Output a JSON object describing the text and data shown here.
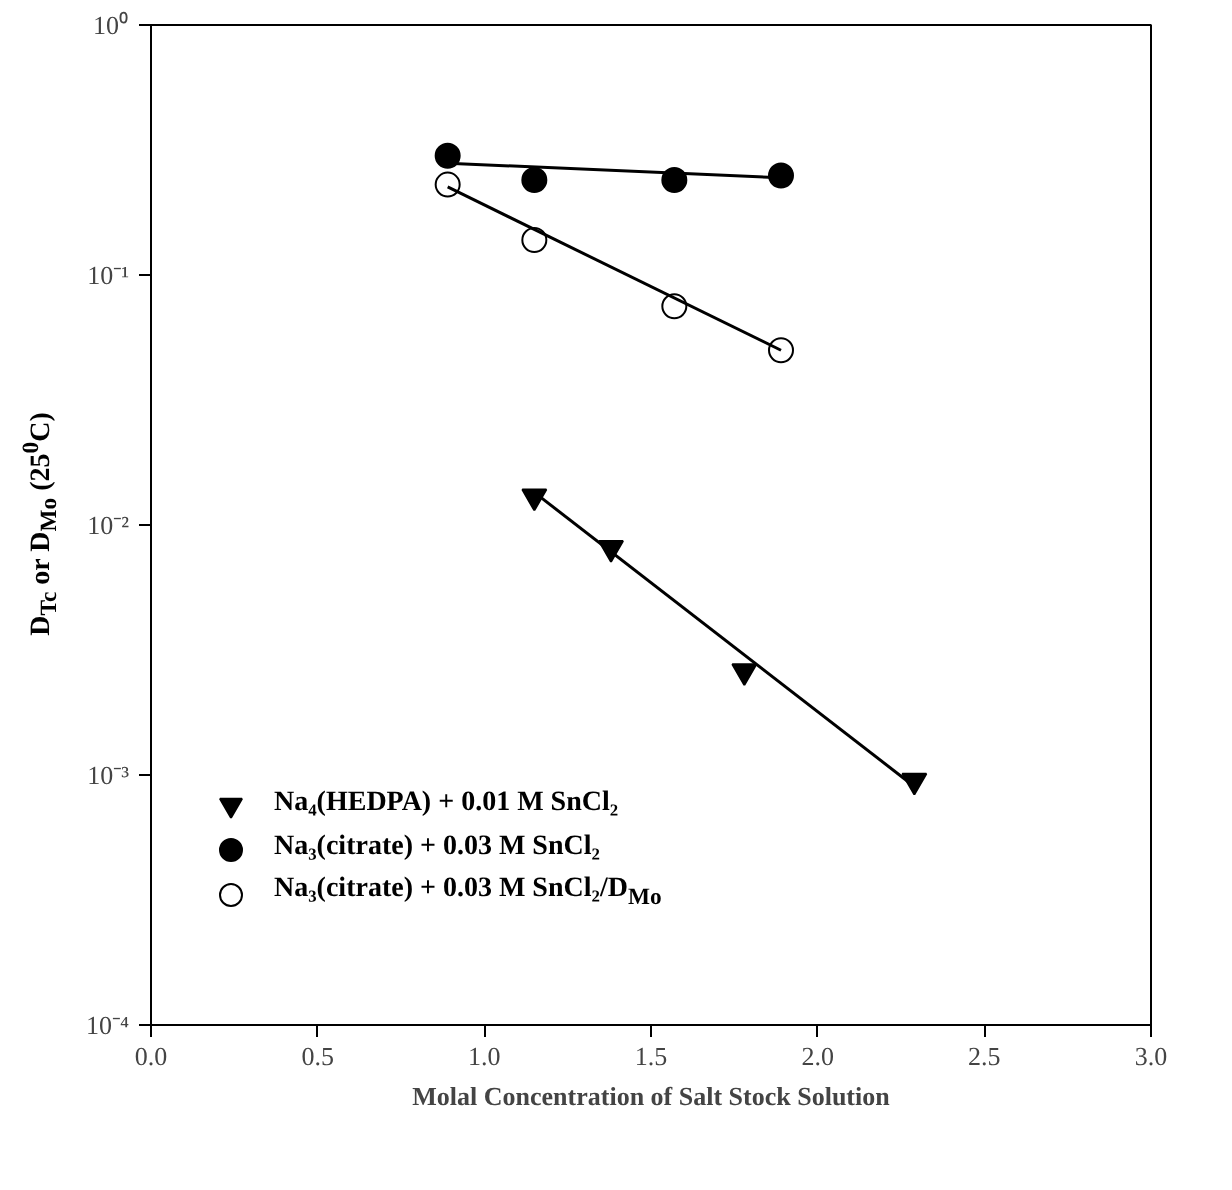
{
  "chart_data": {
    "type": "scatter",
    "xlabel": "Molal Concentration of Salt Stock Solution",
    "ylabel": "D$_{Tc}$ or D$_{Mo}$ (25$^{0}$C)",
    "log": "y",
    "grid": false,
    "legend": "bottom left",
    "xlim": [
      0,
      3
    ],
    "xticks": [
      {
        "value": 0,
        "label": "0.0"
      },
      {
        "value": 0.5,
        "label": "0.5"
      },
      {
        "value": 1,
        "label": "1.0"
      },
      {
        "value": 1.5,
        "label": "1.5"
      },
      {
        "value": 2,
        "label": "2.0"
      },
      {
        "value": 2.5,
        "label": "2.5"
      },
      {
        "value": 3,
        "label": "3.0"
      }
    ],
    "ylim": [
      0.0001,
      1
    ],
    "yticks": [
      {
        "value": 0.0001,
        "label": "10⁻⁴"
      },
      {
        "value": 0.001,
        "label": "10⁻³"
      },
      {
        "value": 0.01,
        "label": "10⁻²"
      },
      {
        "value": 0.1,
        "label": "10⁻¹"
      },
      {
        "value": 1,
        "label": "10⁰"
      }
    ],
    "series": [
      {
        "name": "Na₄(HEDPA) + 0.01 M SnCl₂",
        "color": "#000000",
        "marker": "triangle",
        "x": [
          1.15,
          1.38,
          1.78,
          2.29
        ],
        "values": [
          0.013,
          0.0081,
          0.0026,
          0.00095
        ]
      },
      {
        "name": "Na₃(citrate) + 0.03 M SnCl₂",
        "color": "#000000",
        "marker": "circle",
        "x": [
          0.89,
          1.15,
          1.57,
          1.89
        ],
        "values": [
          0.3,
          0.24,
          0.24,
          0.25
        ]
      },
      {
        "name": "Na₃(citrate) + 0.03 M SnCl₂/D$_{Mo}$",
        "color": "#000000",
        "marker": "circle_open",
        "x": [
          0.89,
          1.15,
          1.57,
          1.89
        ],
        "values": [
          0.23,
          0.138,
          0.075,
          0.05
        ]
      },
      {
        "type": "line",
        "color": "#000000",
        "x": [
          1.15,
          2.29
        ],
        "values": [
          0.0135,
          0.0009
        ]
      },
      {
        "type": "line",
        "color": "#000000",
        "x": [
          0.89,
          1.89
        ],
        "values": [
          0.28,
          0.245
        ]
      },
      {
        "type": "line",
        "color": "#000000",
        "x": [
          0.89,
          1.89
        ],
        "values": [
          0.225,
          0.05
        ]
      }
    ]
  }
}
